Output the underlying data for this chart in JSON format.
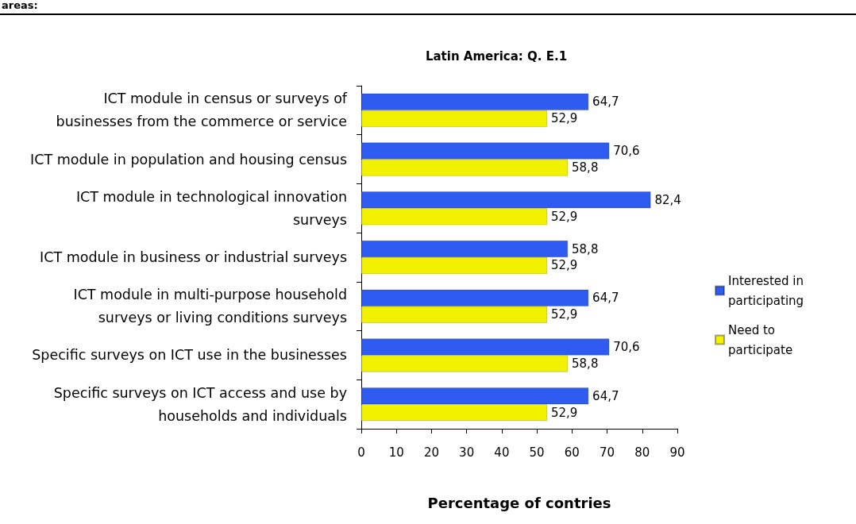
{
  "chart_data": {
    "type": "bar",
    "orientation": "horizontal",
    "title": "Latin America: Q. E.1",
    "xlabel": "Percentage of contries",
    "annotations": [
      "areas:"
    ],
    "categories": [
      "ICT module in census or surveys of\nbusinesses from the commerce or service",
      "ICT module in population and housing census",
      "ICT module in technological innovation\nsurveys",
      "ICT module in business or industrial surveys",
      "ICT module in multi-purpose household\nsurveys or living conditions surveys",
      "Specific surveys on ICT use in the businesses",
      "Specific surveys on ICT access and use by\nhouseholds and individuals"
    ],
    "series": [
      {
        "name": "Interested in\nparticipating",
        "color": "#2f5bf0",
        "values": [
          64.7,
          70.6,
          82.4,
          58.8,
          64.7,
          70.6,
          64.7
        ],
        "value_labels": [
          "64,7",
          "70,6",
          "82,4",
          "58,8",
          "64,7",
          "70,6",
          "64,7"
        ]
      },
      {
        "name": "Need to\nparticipate",
        "color": "#f2f200",
        "values": [
          52.9,
          58.8,
          52.9,
          52.9,
          52.9,
          58.8,
          52.9
        ],
        "value_labels": [
          "52,9",
          "58,8",
          "52,9",
          "52,9",
          "52,9",
          "58,8",
          "52,9"
        ]
      }
    ],
    "xlim": [
      0,
      90
    ],
    "xticks": [
      0,
      10,
      20,
      30,
      40,
      50,
      60,
      70,
      80,
      90
    ],
    "legend": "right"
  }
}
